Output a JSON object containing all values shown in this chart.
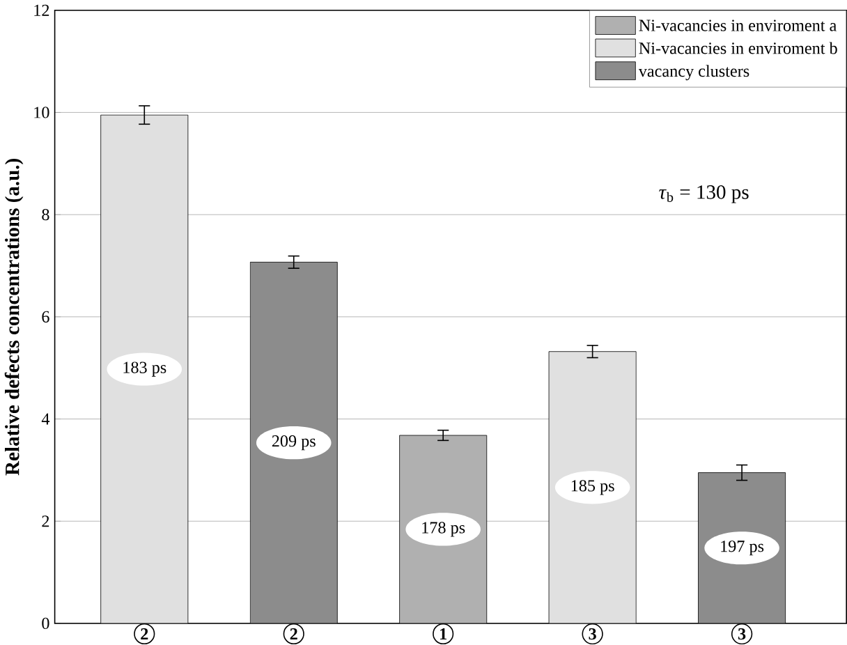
{
  "chart_data": {
    "type": "bar",
    "ylabel": "Relative defects concentrations (a.u.)",
    "categories": [
      "2",
      "2",
      "1",
      "3",
      "3"
    ],
    "series": [
      {
        "name": "Ni-vacancies in enviroment a",
        "color": "#b0b0b0",
        "values": [
          null,
          null,
          3.68,
          null,
          null
        ],
        "errors": [
          null,
          null,
          0.1,
          null,
          null
        ]
      },
      {
        "name": "Ni-vacancies in enviroment b",
        "color": "#e0e0e0",
        "values": [
          9.95,
          null,
          null,
          5.32,
          null
        ],
        "errors": [
          0.18,
          null,
          null,
          0.12,
          null
        ]
      },
      {
        "name": "vacancy clusters",
        "color": "#8c8c8c",
        "values": [
          null,
          7.07,
          null,
          null,
          2.95
        ],
        "errors": [
          null,
          0.12,
          null,
          null,
          0.15
        ]
      }
    ],
    "ylim": [
      0,
      12
    ],
    "yticks": [
      0,
      2,
      4,
      6,
      8,
      10,
      12
    ],
    "grid": "y",
    "legend": "top right",
    "annotations": [
      "183 ps",
      "209 ps",
      "178 ps",
      "185 ps",
      "197 ps",
      "*τ*$_{b}$ = 130 ps"
    ]
  }
}
